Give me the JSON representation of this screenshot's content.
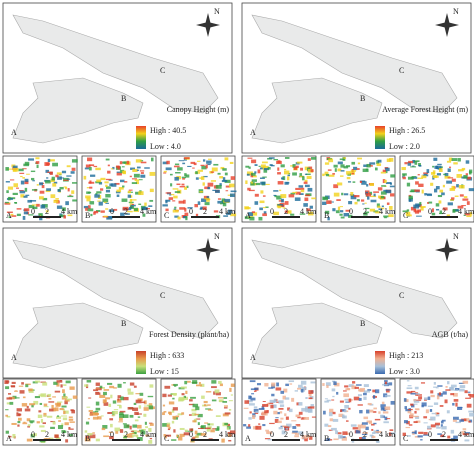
{
  "compass": "N",
  "panels": [
    {
      "title": "Canopy Height (m)",
      "high": "High : 40.5",
      "low": "Low : 4.0",
      "ramp": [
        "#e8402a",
        "#f2d21b",
        "#2f9e44",
        "#1a6a9a"
      ]
    },
    {
      "title": "Average Forest Height (m)",
      "high": "High : 26.5",
      "low": "Low : 2.0",
      "ramp": [
        "#e8402a",
        "#f2d21b",
        "#2f9e44",
        "#1a6a9a"
      ]
    },
    {
      "title": "Forest Density (plant/ha)",
      "high": "High : 633",
      "low": "Low : 15",
      "ramp": [
        "#c8402a",
        "#e89a4a",
        "#c8e07a",
        "#3aa040"
      ]
    },
    {
      "title": "AGB (t/ha)",
      "high": "High : 213",
      "low": "Low : 3.0",
      "ramp": [
        "#d8402a",
        "#f0b090",
        "#a8c0d8",
        "#3a6ab0"
      ]
    }
  ],
  "sites": [
    "A",
    "B",
    "C"
  ],
  "scale": [
    "0",
    "2",
    "4 km"
  ]
}
